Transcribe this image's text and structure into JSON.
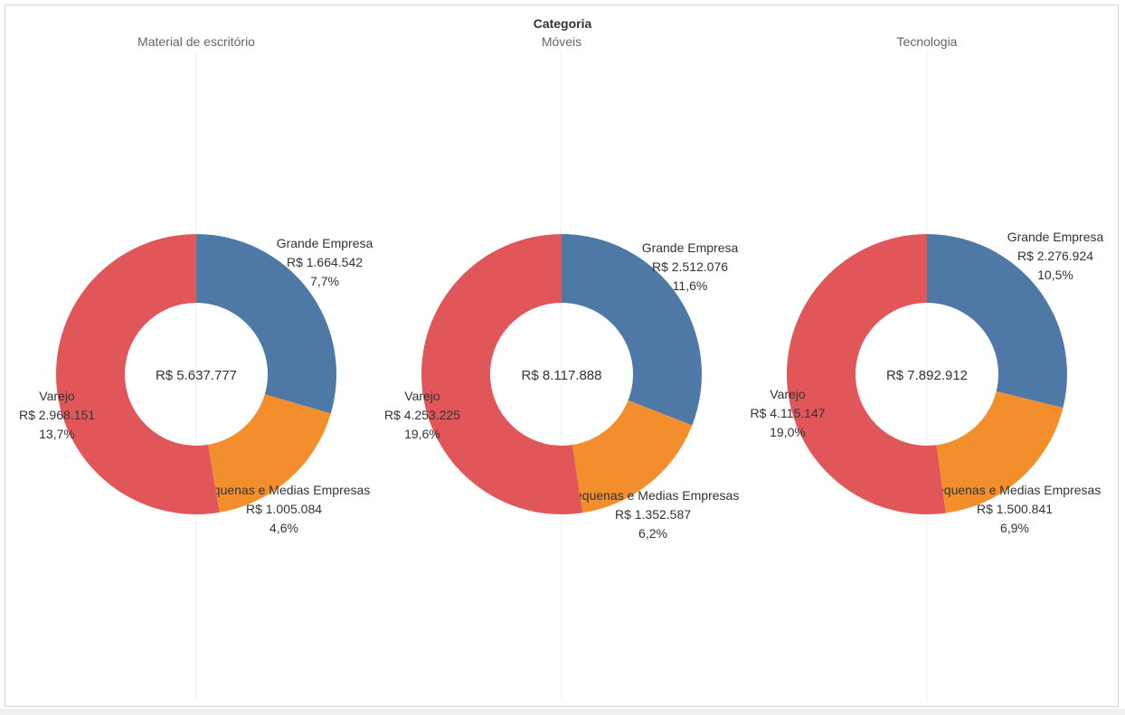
{
  "header": {
    "title": "Categoria"
  },
  "colors": {
    "Grande Empresa": "#4e79a7",
    "Pequenas e Medias Empresas": "#f28e2b",
    "Varejo": "#e15759",
    "divider": "#ececec",
    "panel_title": "#666666",
    "label_text": "#333333"
  },
  "chart_data": [
    {
      "type": "pie",
      "title": "Material de escritório",
      "total_label": "R$ 5.637.777",
      "slices": [
        {
          "name": "Grande Empresa",
          "value": 1664542,
          "value_label": "R$ 1.664.542",
          "pct_label": "7,7%"
        },
        {
          "name": "Pequenas e Medias Empresas",
          "value": 1005084,
          "value_label": "R$ 1.005.084",
          "pct_label": "4,6%"
        },
        {
          "name": "Varejo",
          "value": 2968151,
          "value_label": "R$ 2.968.151",
          "pct_label": "13,7%"
        }
      ]
    },
    {
      "type": "pie",
      "title": "Móveis",
      "total_label": "R$ 8.117.888",
      "slices": [
        {
          "name": "Grande Empresa",
          "value": 2512076,
          "value_label": "R$ 2.512.076",
          "pct_label": "11,6%"
        },
        {
          "name": "Pequenas e Medias Empresas",
          "value": 1352587,
          "value_label": "R$ 1.352.587",
          "pct_label": "6,2%"
        },
        {
          "name": "Varejo",
          "value": 4253225,
          "value_label": "R$ 4.253.225",
          "pct_label": "19,6%"
        }
      ]
    },
    {
      "type": "pie",
      "title": "Tecnologia",
      "total_label": "R$ 7.892.912",
      "slices": [
        {
          "name": "Grande Empresa",
          "value": 2276924,
          "value_label": "R$ 2.276.924",
          "pct_label": "10,5%"
        },
        {
          "name": "Pequenas e Medias Empresas",
          "value": 1500841,
          "value_label": "R$ 1.500.841",
          "pct_label": "6,9%"
        },
        {
          "name": "Varejo",
          "value": 4115147,
          "value_label": "R$ 4.115.147",
          "pct_label": "19,0%"
        }
      ]
    }
  ]
}
